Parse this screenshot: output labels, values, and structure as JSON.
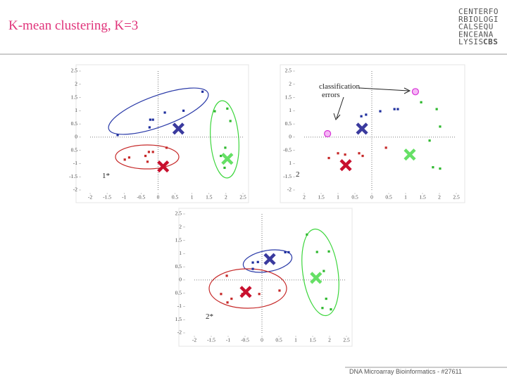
{
  "slide_title": "K-mean clustering, K=3",
  "logo": [
    "CENTERFO",
    "RBIOLOGI",
    "CALSEQU",
    "ENCEANA",
    "LYSIS",
    "CBS"
  ],
  "footer": "DNA Microarray Bioinformatics - #27611",
  "chart_data": [
    {
      "type": "scatter",
      "annotations": [
        "1*"
      ],
      "xlim": [
        -2,
        2.5
      ],
      "ylim": [
        -2,
        2.5
      ],
      "xticks": [
        -2,
        -1.5,
        -1,
        -0.5,
        0,
        0.5,
        1,
        1.5,
        2,
        2.5
      ],
      "yticks": [
        -2,
        -1.5,
        -1,
        {
          "value": -0.5,
          "label": "0.5"
        },
        0,
        0.5,
        1,
        1.5,
        2,
        2.5
      ],
      "series": [
        {
          "color": "#1f2f9e",
          "marker": "square",
          "x": [
            -1.19,
            -0.23,
            -0.15,
            -0.25,
            0.2,
            0.75,
            1.31
          ],
          "y": [
            0.08,
            0.66,
            0.66,
            0.37,
            0.93,
            1.0,
            1.72
          ]
        },
        {
          "color": "#c62828",
          "marker": "square",
          "x": [
            -0.27,
            -0.15,
            -0.37,
            -0.85,
            -0.98,
            -0.31,
            0.25
          ],
          "y": [
            -0.56,
            -0.56,
            -0.71,
            -0.77,
            -0.85,
            -0.93,
            -0.4
          ]
        },
        {
          "color": "#2eb82e",
          "marker": "square",
          "x": [
            1.67,
            2.04,
            2.13,
            1.98,
            1.85,
            1.96
          ],
          "y": [
            0.98,
            1.08,
            0.61,
            -0.4,
            -0.71,
            -1.16
          ]
        },
        {
          "color": "#3a3a9e",
          "marker": "cross",
          "x": [
            0.6
          ],
          "y": [
            0.32
          ]
        },
        {
          "color": "#c8102e",
          "marker": "cross",
          "x": [
            0.15
          ],
          "y": [
            -1.11
          ]
        },
        {
          "color": "#66e066",
          "marker": "cross",
          "x": [
            2.04
          ],
          "y": [
            -0.82
          ]
        }
      ]
    },
    {
      "type": "scatter",
      "annotations": [
        "2",
        "classification",
        "errors"
      ],
      "xlim": [
        -2,
        2.5
      ],
      "ylim": [
        -2,
        2.5
      ],
      "xticks": [
        {
          "value": -2,
          "label": "2"
        },
        {
          "value": -1.5,
          "label": "1.5"
        },
        {
          "value": -1,
          "label": "1"
        },
        {
          "value": -0.5,
          "label": "0.5"
        },
        0,
        0.5,
        1,
        1.5,
        2,
        2.5
      ],
      "yticks": [
        -2,
        -1.5,
        {
          "value": -1,
          "label": "1"
        },
        -0.5,
        0,
        0.5,
        1,
        1.5,
        2,
        2.5
      ],
      "series": [
        {
          "color": "#1f2f9e",
          "marker": "square",
          "x": [
            -0.31,
            -0.17,
            0.25,
            0.67,
            0.77
          ],
          "y": [
            0.79,
            0.85,
            0.98,
            1.06,
            1.06
          ]
        },
        {
          "color": "#c62828",
          "marker": "square",
          "x": [
            -1.27,
            -1.0,
            -0.79,
            -0.375,
            -0.27,
            0.42
          ],
          "y": [
            -0.79,
            -0.61,
            -0.66,
            -0.61,
            -0.71,
            -0.4
          ]
        },
        {
          "color": "#2eb82e",
          "marker": "square",
          "x": [
            1.46,
            1.92,
            2.02,
            1.71,
            2.02,
            1.81
          ],
          "y": [
            1.32,
            1.06,
            0.4,
            -0.13,
            -1.19,
            -1.14
          ]
        },
        {
          "color": "#3a3a9e",
          "marker": "cross",
          "x": [
            -0.29
          ],
          "y": [
            0.32
          ]
        },
        {
          "color": "#c8102e",
          "marker": "cross",
          "x": [
            -0.77
          ],
          "y": [
            -1.06
          ]
        },
        {
          "color": "#66e066",
          "marker": "cross",
          "x": [
            1.125
          ],
          "y": [
            -0.66
          ]
        },
        {
          "color": "#d633d6",
          "marker": "circle",
          "x": [
            -1.31,
            1.29
          ],
          "y": [
            0.13,
            1.72
          ]
        }
      ]
    },
    {
      "type": "scatter",
      "annotations": [
        "2*"
      ],
      "xlim": [
        -2,
        2.5
      ],
      "ylim": [
        -2,
        2.5
      ],
      "xticks": [
        -2,
        -1.5,
        -1,
        -0.5,
        0,
        0.5,
        1,
        1.5,
        2,
        2.5
      ],
      "yticks": [
        -2,
        {
          "value": -1.5,
          "label": "1.5"
        },
        -1,
        {
          "value": -0.5,
          "label": "0.5"
        },
        0,
        0.5,
        1,
        1.5,
        2,
        2.5
      ],
      "series": [
        {
          "color": "#1f2f9e",
          "marker": "square",
          "x": [
            -0.27,
            -0.27,
            -0.12,
            0.69,
            0.79
          ],
          "y": [
            0.42,
            0.66,
            0.68,
            1.05,
            1.05
          ]
        },
        {
          "color": "#c62828",
          "marker": "square",
          "x": [
            -1.04,
            -1.21,
            -0.9,
            -0.58,
            -0.08,
            0.52,
            -1.02
          ],
          "y": [
            0.16,
            -0.53,
            -0.71,
            -0.53,
            -0.53,
            -0.4,
            -0.85
          ]
        },
        {
          "color": "#2eb82e",
          "marker": "square",
          "x": [
            1.33,
            1.63,
            1.98,
            1.83,
            2.04,
            1.79,
            1.9
          ],
          "y": [
            1.72,
            1.06,
            1.08,
            0.34,
            -1.11,
            -1.06,
            -0.71
          ]
        },
        {
          "color": "#3a3a9e",
          "marker": "cross",
          "x": [
            0.23
          ],
          "y": [
            0.79
          ]
        },
        {
          "color": "#c8102e",
          "marker": "cross",
          "x": [
            -0.48
          ],
          "y": [
            -0.45
          ]
        },
        {
          "color": "#66e066",
          "marker": "cross",
          "x": [
            1.6
          ],
          "y": [
            0.08
          ]
        }
      ]
    }
  ]
}
